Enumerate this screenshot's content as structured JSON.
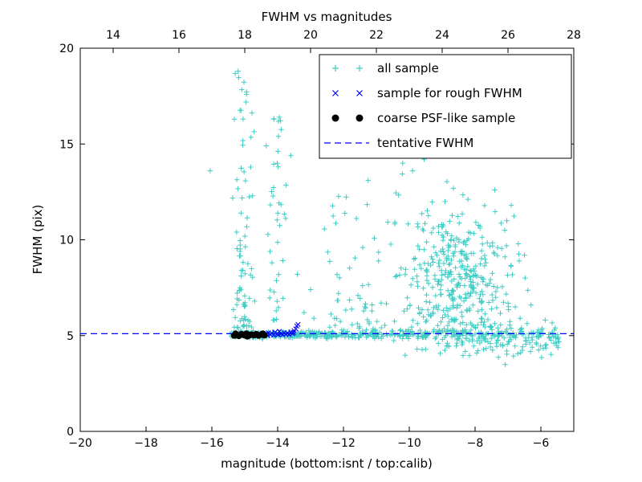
{
  "chart_data": {
    "type": "scatter",
    "title": "FWHM vs magnitudes",
    "xlabel": "magnitude (bottom:isnt / top:calib)",
    "ylabel": "FWHM (pix)",
    "x_bottom": {
      "range": [
        -20,
        -5
      ],
      "ticks": [
        -20,
        -18,
        -16,
        -14,
        -12,
        -10,
        -8,
        -6
      ],
      "tick_labels": [
        "−20",
        "−18",
        "−16",
        "−14",
        "−12",
        "−10",
        "−8",
        "−6"
      ]
    },
    "x_top": {
      "range": [
        13,
        28
      ],
      "ticks": [
        14,
        16,
        18,
        20,
        22,
        24,
        26,
        28
      ],
      "tick_labels": [
        "14",
        "16",
        "18",
        "20",
        "22",
        "24",
        "26",
        "28"
      ]
    },
    "y": {
      "range": [
        0,
        20
      ],
      "ticks": [
        0,
        5,
        10,
        15,
        20
      ],
      "tick_labels": [
        "0",
        "5",
        "10",
        "15",
        "20"
      ]
    },
    "grid": false,
    "tentative_fwhm": 5.1,
    "colors": {
      "all_sample": "#3fccc4",
      "rough_sample": "#0000ff",
      "psf_sample": "#000000",
      "tentative_line": "#0000ff",
      "axes": "#000000",
      "background": "#ffffff"
    },
    "legend": {
      "position": "upper right",
      "items": [
        {
          "label": "all sample",
          "marker": "plus",
          "color": "#3fccc4"
        },
        {
          "label": "sample for rough FWHM",
          "marker": "x",
          "color": "#0000ff"
        },
        {
          "label": "coarse PSF-like sample",
          "marker": "dot",
          "color": "#000000"
        },
        {
          "label": "tentative FWHM",
          "marker": "dashed-line",
          "color": "#0000ff"
        }
      ]
    },
    "seed": 42,
    "series": [
      {
        "name": "all sample",
        "marker": "plus",
        "color": "#3fccc4",
        "clusters": [
          {
            "n": 250,
            "x": {
              "dist": "uniform",
              "min": -15.45,
              "max": -12.0
            },
            "y": {
              "dist": "gauss",
              "mu": 5.05,
              "sd": 0.09
            }
          },
          {
            "n": 160,
            "x": {
              "dist": "uniform",
              "min": -12.0,
              "max": -8.0
            },
            "y": {
              "dist": "gauss",
              "mu": 5.08,
              "sd": 0.13
            }
          },
          {
            "n": 110,
            "x": {
              "dist": "uniform",
              "min": -8.0,
              "max": -5.45
            },
            "y": {
              "dist": "gauss",
              "mu": 5.0,
              "sd": 0.32,
              "min": 3.9,
              "max": 6.2
            }
          },
          {
            "n": 80,
            "x": {
              "dist": "gauss",
              "mu": -15.05,
              "sd": 0.15,
              "min": -15.5,
              "max": -14.6
            },
            "y": {
              "dist": "powlow",
              "min": 5.4,
              "max": 19.0,
              "p": 1.7
            }
          },
          {
            "n": 40,
            "x": {
              "dist": "gauss",
              "mu": -14.05,
              "sd": 0.12,
              "min": -14.45,
              "max": -13.7
            },
            "y": {
              "dist": "powlow",
              "min": 5.8,
              "max": 16.5,
              "p": 1.5
            }
          },
          {
            "n": 420,
            "x": {
              "dist": "gauss",
              "mu": -8.5,
              "sd": 0.85,
              "min": -11.2,
              "max": -6.3
            },
            "y": {
              "dist": "gauss",
              "mu": 7.6,
              "sd": 2.1,
              "min": 3.9,
              "max": 14.6
            }
          },
          {
            "n": 55,
            "x": {
              "dist": "uniform",
              "min": -12.6,
              "max": -10.4
            },
            "y": {
              "dist": "powlow",
              "min": 5.4,
              "max": 12.5,
              "p": 2.2
            }
          },
          {
            "n": 30,
            "x": {
              "dist": "uniform",
              "min": -7.6,
              "max": -5.5
            },
            "y": {
              "dist": "gauss",
              "mu": 4.6,
              "sd": 0.55,
              "min": 3.4,
              "max": 6.0
            }
          }
        ],
        "points": [
          [
            -16.05,
            13.6
          ],
          [
            -15.2,
            18.8
          ],
          [
            -14.95,
            17.6
          ],
          [
            -15.05,
            16.3
          ],
          [
            -13.95,
            16.4
          ],
          [
            -14.35,
            14.9
          ],
          [
            -13.6,
            14.4
          ],
          [
            -13.2,
            6.2
          ],
          [
            -13.0,
            7.4
          ],
          [
            -12.9,
            5.9
          ],
          [
            -13.4,
            8.2
          ],
          [
            -11.6,
            14.6
          ],
          [
            -11.25,
            13.1
          ],
          [
            -10.2,
            14.0
          ],
          [
            -9.9,
            13.6
          ],
          [
            -9.55,
            14.2
          ],
          [
            -7.4,
            12.6
          ],
          [
            -7.1,
            10.5
          ],
          [
            -6.9,
            11.8
          ],
          [
            -6.5,
            9.2
          ],
          [
            -6.3,
            6.6
          ],
          [
            -6.1,
            5.15
          ],
          [
            -5.85,
            4.35
          ]
        ]
      },
      {
        "name": "sample for rough FWHM",
        "marker": "x",
        "color": "#0000ff",
        "points": [
          [
            -14.62,
            5.02
          ],
          [
            -14.55,
            5.08
          ],
          [
            -14.5,
            4.98
          ],
          [
            -14.45,
            5.12
          ],
          [
            -14.4,
            5.05
          ],
          [
            -14.35,
            5.1
          ],
          [
            -14.3,
            5.0
          ],
          [
            -14.28,
            5.15
          ],
          [
            -14.22,
            5.06
          ],
          [
            -14.18,
            5.12
          ],
          [
            -14.12,
            5.02
          ],
          [
            -14.08,
            5.18
          ],
          [
            -14.02,
            5.08
          ],
          [
            -13.98,
            5.05
          ],
          [
            -13.95,
            5.22
          ],
          [
            -13.9,
            5.1
          ],
          [
            -13.85,
            5.05
          ],
          [
            -13.8,
            5.15
          ],
          [
            -13.75,
            5.08
          ],
          [
            -13.7,
            5.12
          ],
          [
            -13.65,
            5.05
          ],
          [
            -13.6,
            5.18
          ],
          [
            -13.55,
            5.1
          ],
          [
            -13.52,
            5.15
          ],
          [
            -13.5,
            5.25
          ],
          [
            -13.45,
            5.35
          ],
          [
            -13.42,
            5.5
          ],
          [
            -13.38,
            5.58
          ]
        ]
      },
      {
        "name": "coarse PSF-like sample",
        "marker": "dot",
        "color": "#000000",
        "points": [
          [
            -15.32,
            5.0
          ],
          [
            -15.28,
            5.1
          ],
          [
            -15.25,
            5.05
          ],
          [
            -15.18,
            4.98
          ],
          [
            -15.1,
            5.08
          ],
          [
            -15.02,
            5.02
          ],
          [
            -14.95,
            5.1
          ],
          [
            -14.92,
            4.96
          ],
          [
            -14.88,
            5.0
          ],
          [
            -14.8,
            5.06
          ],
          [
            -14.72,
            5.02
          ],
          [
            -14.65,
            5.08
          ],
          [
            -14.58,
            5.0
          ],
          [
            -14.5,
            5.05
          ],
          [
            -14.45,
            5.1
          ],
          [
            -14.4,
            5.02
          ]
        ]
      },
      {
        "name": "tentative FWHM",
        "marker": "dashed-line",
        "color": "#0000ff",
        "y": 5.1
      }
    ]
  }
}
